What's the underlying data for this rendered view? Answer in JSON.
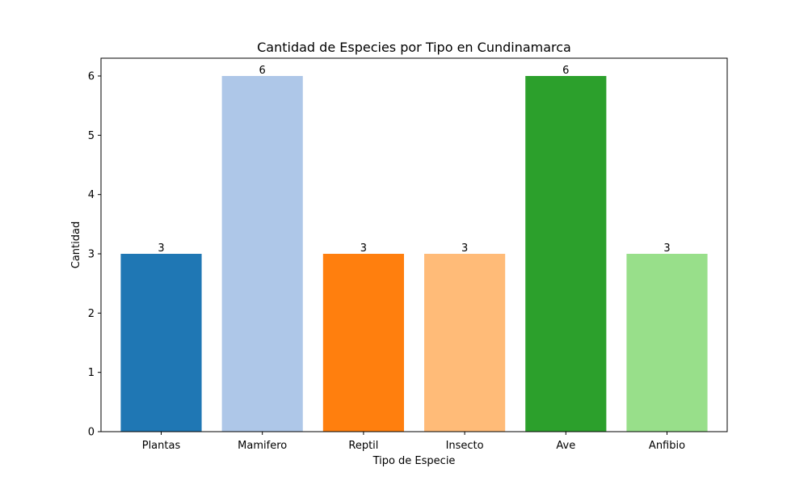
{
  "chart_data": {
    "type": "bar",
    "title": "Cantidad de Especies por Tipo en Cundinamarca",
    "xlabel": "Tipo de Especie",
    "ylabel": "Cantidad",
    "categories": [
      "Plantas",
      "Mamifero",
      "Reptil",
      "Insecto",
      "Ave",
      "Anfibio"
    ],
    "values": [
      3,
      6,
      3,
      3,
      6,
      3
    ],
    "colors": [
      "#1f77b4",
      "#aec7e8",
      "#ff7f0e",
      "#ffbb78",
      "#2ca02c",
      "#98df8a"
    ],
    "yticks": [
      0,
      1,
      2,
      3,
      4,
      5,
      6
    ],
    "ylim": [
      0,
      6.3
    ],
    "data_labels": true,
    "grid": false
  }
}
